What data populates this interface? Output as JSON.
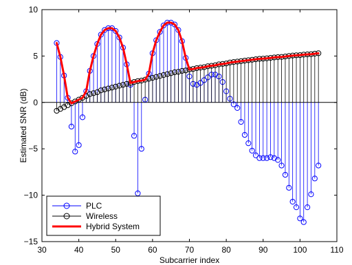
{
  "chart_data": {
    "type": "line",
    "title": "",
    "xlabel": "Subcarrier index",
    "ylabel": "Estimated SNR (dB)",
    "xlim": [
      30,
      110
    ],
    "ylim": [
      -15,
      10
    ],
    "xticks": [
      30,
      40,
      50,
      60,
      70,
      80,
      90,
      100,
      110
    ],
    "yticks": [
      -15,
      -10,
      -5,
      0,
      5,
      10
    ],
    "xtick_labels": [
      "30",
      "40",
      "50",
      "60",
      "70",
      "80",
      "90",
      "100",
      "110"
    ],
    "ytick_labels": [
      "−15",
      "−10",
      "−5",
      "0",
      "5",
      "10"
    ],
    "grid": false,
    "legend_position": "bottom-left",
    "x": [
      34,
      35,
      36,
      37,
      38,
      39,
      40,
      41,
      42,
      43,
      44,
      45,
      46,
      47,
      48,
      49,
      50,
      51,
      52,
      53,
      54,
      55,
      56,
      57,
      58,
      59,
      60,
      61,
      62,
      63,
      64,
      65,
      66,
      67,
      68,
      69,
      70,
      71,
      72,
      73,
      74,
      75,
      76,
      77,
      78,
      79,
      80,
      81,
      82,
      83,
      84,
      85,
      86,
      87,
      88,
      89,
      90,
      91,
      92,
      93,
      94,
      95,
      96,
      97,
      98,
      99,
      100,
      101,
      102,
      103,
      104,
      105
    ],
    "series": [
      {
        "name": "PLC",
        "style": "stem",
        "color": "#0000ff",
        "marker": "circle",
        "values": [
          6.4,
          4.9,
          2.9,
          0.5,
          -2.6,
          -5.3,
          -4.6,
          -1.6,
          1.2,
          3.4,
          5.0,
          6.3,
          7.3,
          7.8,
          8.0,
          8.0,
          7.7,
          7.0,
          5.9,
          4.1,
          1.9,
          -3.6,
          -9.8,
          -5.0,
          0.3,
          3.1,
          5.3,
          6.7,
          7.6,
          8.3,
          8.6,
          8.6,
          8.4,
          7.8,
          6.6,
          4.8,
          2.8,
          2.0,
          1.9,
          2.1,
          2.4,
          2.7,
          3.0,
          3.0,
          2.8,
          2.2,
          1.2,
          0.4,
          -0.2,
          -0.6,
          -2.1,
          -3.5,
          -4.4,
          -5.2,
          -5.7,
          -6.0,
          -6.0,
          -6.0,
          -5.9,
          -6.0,
          -6.2,
          -6.8,
          -7.8,
          -9.2,
          -10.7,
          -11.3,
          -12.5,
          -12.9,
          -11.3,
          -9.9,
          -8.2,
          -6.8
        ]
      },
      {
        "name": "Wireless",
        "style": "stem",
        "color": "#000000",
        "marker": "circle",
        "values": [
          -0.9,
          -0.7,
          -0.5,
          -0.3,
          -0.1,
          0.1,
          0.3,
          0.5,
          0.7,
          0.9,
          1.0,
          1.1,
          1.3,
          1.4,
          1.5,
          1.6,
          1.7,
          1.8,
          1.9,
          2.0,
          2.1,
          2.2,
          2.3,
          2.35,
          2.45,
          2.55,
          2.65,
          2.75,
          2.85,
          2.95,
          3.05,
          3.15,
          3.25,
          3.3,
          3.4,
          3.45,
          3.55,
          3.6,
          3.7,
          3.75,
          3.8,
          3.9,
          3.95,
          4.0,
          4.1,
          4.15,
          4.2,
          4.3,
          4.35,
          4.4,
          4.45,
          4.5,
          4.55,
          4.6,
          4.65,
          4.7,
          4.72,
          4.75,
          4.8,
          4.85,
          4.88,
          4.9,
          4.95,
          5.0,
          5.05,
          5.08,
          5.1,
          5.15,
          5.18,
          5.2,
          5.25,
          5.3
        ]
      },
      {
        "name": "Hybrid System",
        "style": "line",
        "color": "#ff0000",
        "values": [
          6.4,
          4.9,
          2.9,
          0.5,
          -0.1,
          0.1,
          0.3,
          0.5,
          1.2,
          3.4,
          5.0,
          6.3,
          7.3,
          7.8,
          8.0,
          8.0,
          7.7,
          7.0,
          5.9,
          4.1,
          2.1,
          2.2,
          2.3,
          2.35,
          2.45,
          3.1,
          5.3,
          6.7,
          7.6,
          8.3,
          8.6,
          8.6,
          8.4,
          7.8,
          6.6,
          4.8,
          3.55,
          3.6,
          3.7,
          3.75,
          3.8,
          3.9,
          3.95,
          4.0,
          4.1,
          4.15,
          4.2,
          4.3,
          4.35,
          4.4,
          4.45,
          4.5,
          4.55,
          4.6,
          4.65,
          4.7,
          4.72,
          4.75,
          4.8,
          4.85,
          4.88,
          4.9,
          4.95,
          5.0,
          5.05,
          5.08,
          5.1,
          5.15,
          5.18,
          5.2,
          5.25,
          5.3
        ]
      }
    ]
  }
}
